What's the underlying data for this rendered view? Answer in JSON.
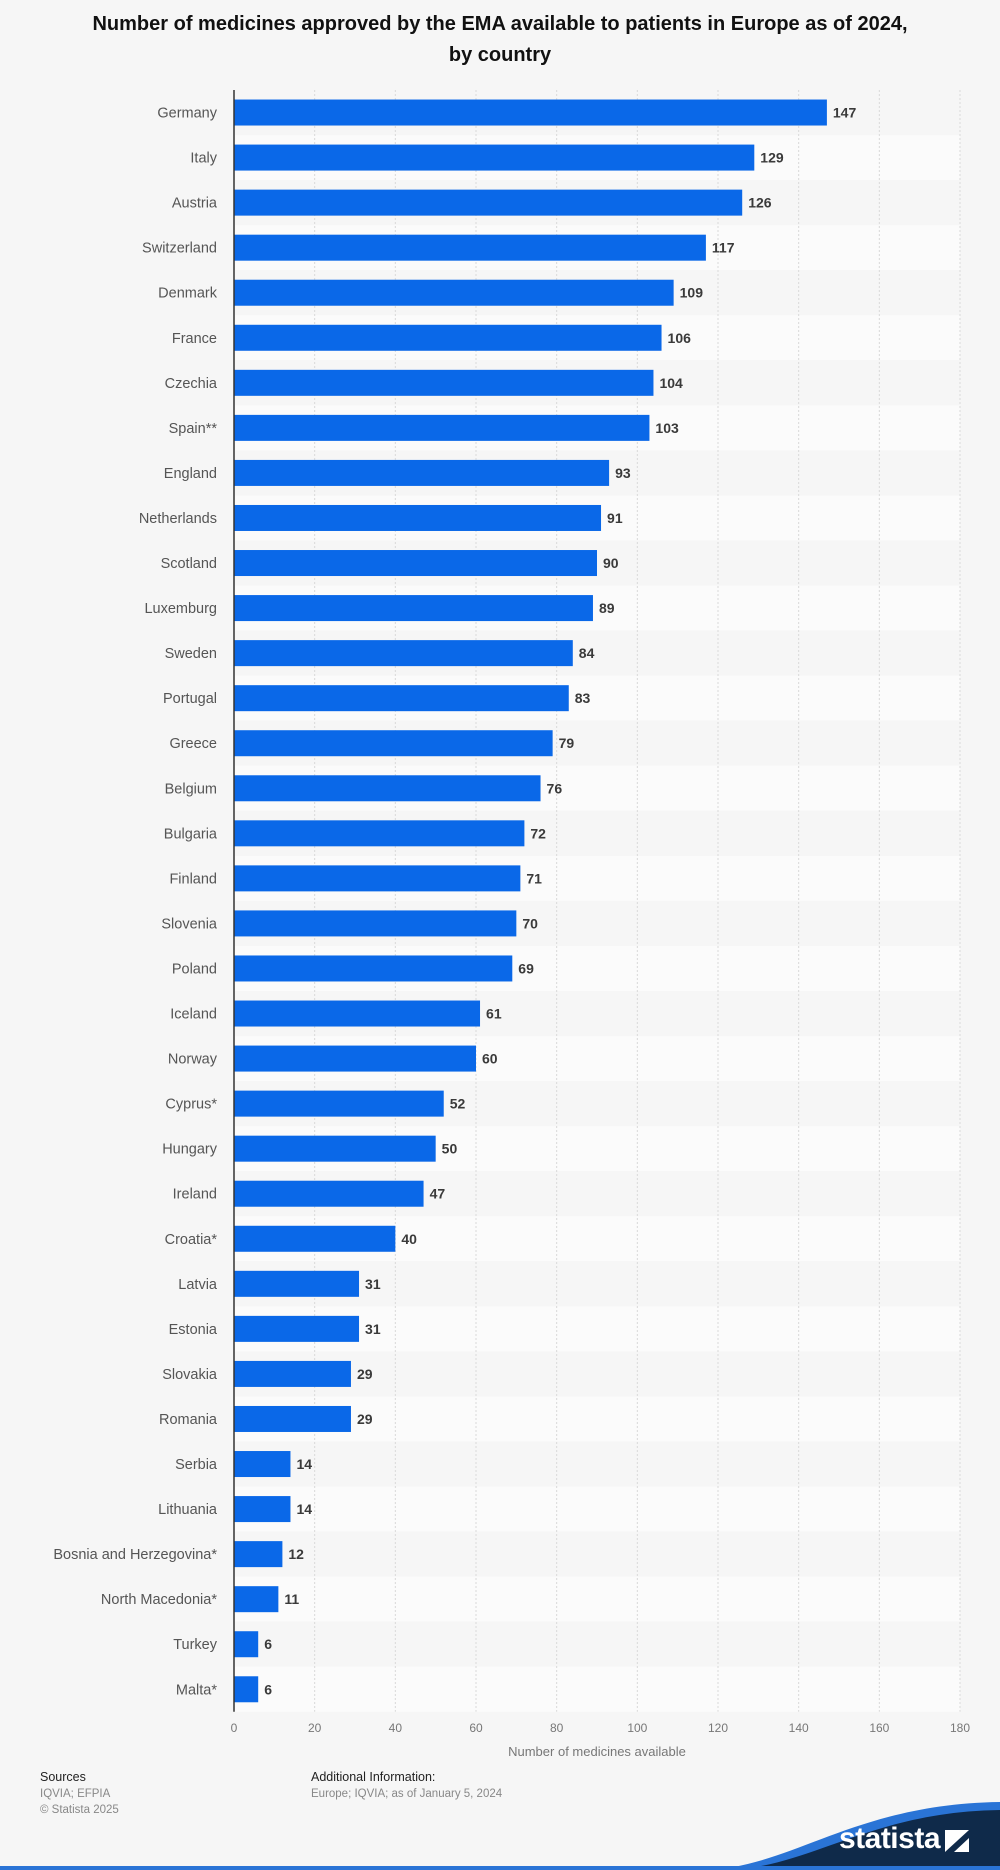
{
  "chart_data": {
    "type": "bar",
    "orientation": "horizontal",
    "title": "Number of medicines approved by the EMA available to patients in Europe as of 2024, by country",
    "xlabel": "Number of medicines available",
    "ylabel": "",
    "xlim": [
      0,
      180
    ],
    "xticks": [
      0,
      20,
      40,
      60,
      80,
      100,
      120,
      140,
      160,
      180
    ],
    "grid": true,
    "bar_color": "#0a68e8",
    "categories": [
      "Germany",
      "Italy",
      "Austria",
      "Switzerland",
      "Denmark",
      "France",
      "Czechia",
      "Spain**",
      "England",
      "Netherlands",
      "Scotland",
      "Luxemburg",
      "Sweden",
      "Portugal",
      "Greece",
      "Belgium",
      "Bulgaria",
      "Finland",
      "Slovenia",
      "Poland",
      "Iceland",
      "Norway",
      "Cyprus*",
      "Hungary",
      "Ireland",
      "Croatia*",
      "Latvia",
      "Estonia",
      "Slovakia",
      "Romania",
      "Serbia",
      "Lithuania",
      "Bosnia and Herzegovina*",
      "North Macedonia*",
      "Turkey",
      "Malta*"
    ],
    "values": [
      147,
      129,
      126,
      117,
      109,
      106,
      104,
      103,
      93,
      91,
      90,
      89,
      84,
      83,
      79,
      76,
      72,
      71,
      70,
      69,
      61,
      60,
      52,
      50,
      47,
      40,
      31,
      31,
      29,
      29,
      14,
      14,
      12,
      11,
      6,
      6
    ]
  },
  "footer": {
    "sources_heading": "Sources",
    "sources_text": "IQVIA; EFPIA",
    "copyright": "© Statista 2025",
    "additional_heading": "Additional Information:",
    "additional_text": "Europe; IQVIA; as of January 5, 2024"
  },
  "brand": {
    "name": "statista",
    "accent_color": "#0a68e8",
    "dark_color": "#0f2a4a"
  }
}
